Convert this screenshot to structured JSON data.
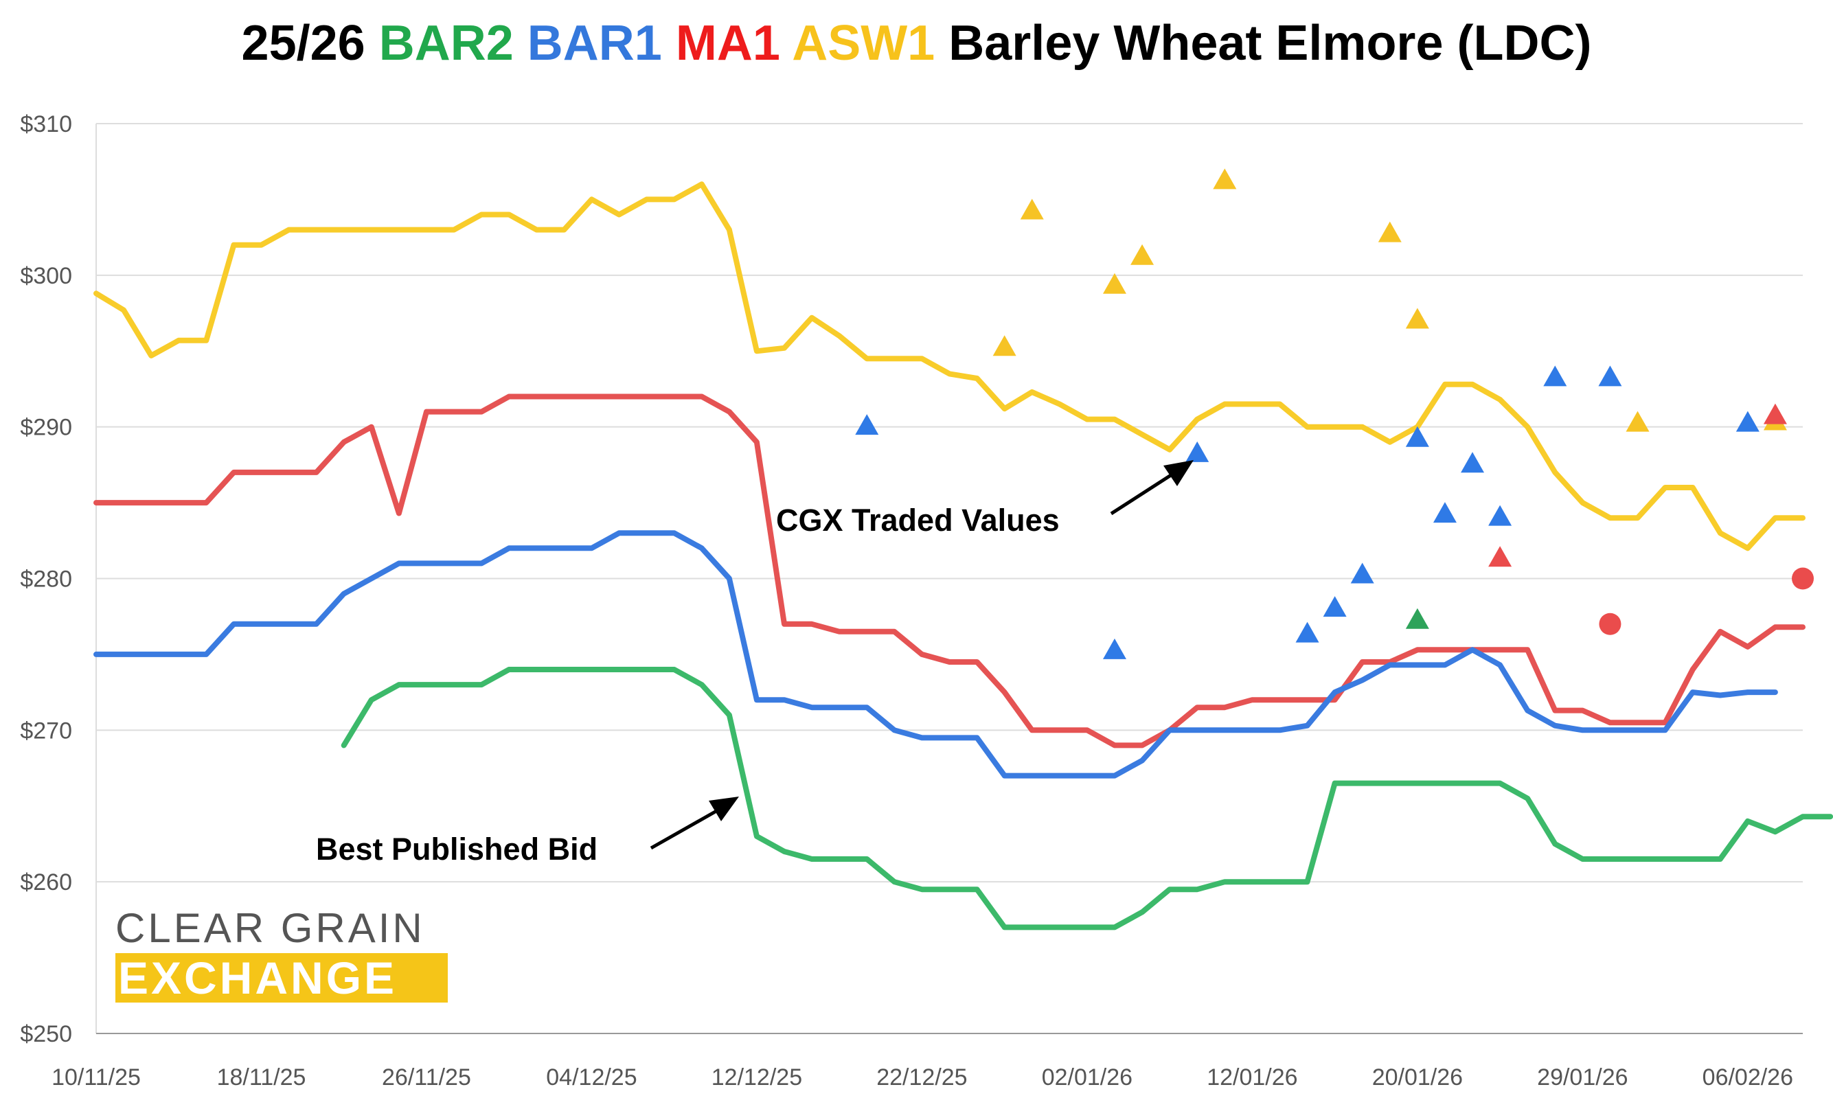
{
  "title": {
    "parts": [
      {
        "text": "25/26",
        "color": "#000000"
      },
      {
        "text": "BAR2",
        "color": "#21a84c"
      },
      {
        "text": "BAR1",
        "color": "#3478dc"
      },
      {
        "text": "MA1",
        "color": "#ee1c1c"
      },
      {
        "text": "ASW1",
        "color": "#f7c21b"
      },
      {
        "text": "Barley Wheat Elmore (LDC)",
        "color": "#000000"
      }
    ]
  },
  "logo": {
    "line1": "CLEAR GRAIN",
    "line2": "EXCHANGE"
  },
  "annotations": {
    "traded": "CGX Traded Values",
    "bid": "Best Published Bid"
  },
  "chart_data": {
    "type": "line",
    "ylim": [
      250,
      310
    ],
    "y_ticks": [
      250,
      260,
      270,
      280,
      290,
      300,
      310
    ],
    "y_tick_labels": [
      "$250",
      "$260",
      "$270",
      "$280",
      "$290",
      "$300",
      "$310"
    ],
    "x_ticks": [
      0,
      6,
      12,
      18,
      24,
      30,
      36,
      42,
      48,
      54,
      60
    ],
    "x_tick_labels": [
      "10/11/25",
      "18/11/25",
      "26/11/25",
      "04/12/25",
      "12/12/25",
      "22/12/25",
      "02/01/26",
      "12/01/26",
      "20/01/26",
      "29/01/26",
      "06/02/26"
    ],
    "grid": true,
    "colors": {
      "BAR2": "#3cb96a",
      "BAR1": "#3a7be0",
      "MA1": "#e55353",
      "ASW1": "#f8cc2a",
      "marker_BAR1": "#2f7ae6",
      "marker_MA1": "#ea4c4c",
      "marker_ASW1": "#f6c325",
      "marker_BAR2": "#2ea35a"
    },
    "series": [
      {
        "name": "ASW1",
        "values": [
          298.8,
          297.7,
          294.7,
          295.7,
          295.7,
          302,
          302,
          303,
          303,
          303,
          303,
          303,
          303,
          303,
          304,
          304,
          303,
          303,
          305,
          304,
          305,
          305,
          306,
          303,
          295,
          295.2,
          297.2,
          296,
          294.5,
          294.5,
          294.5,
          293.5,
          293.2,
          291.2,
          292.3,
          291.5,
          290.5,
          290.5,
          289.5,
          288.5,
          290.5,
          291.5,
          291.5,
          291.5,
          290,
          290,
          290,
          289,
          290,
          292.8,
          292.8,
          291.8,
          290,
          287,
          285,
          284,
          284,
          286,
          286,
          283,
          282,
          284,
          284
        ]
      },
      {
        "name": "MA1",
        "values": [
          285,
          285,
          285,
          285,
          285,
          287,
          287,
          287,
          287,
          289,
          290,
          284.3,
          291,
          291,
          291,
          292,
          292,
          292,
          292,
          292,
          292,
          292,
          292,
          291,
          289,
          277,
          277,
          276.5,
          276.5,
          276.5,
          275,
          274.5,
          274.5,
          272.5,
          270,
          270,
          270,
          269,
          269,
          270,
          271.5,
          271.5,
          272,
          272,
          272,
          272,
          274.5,
          274.5,
          275.3,
          275.3,
          275.3,
          275.3,
          275.3,
          271.3,
          271.3,
          270.5,
          270.5,
          270.5,
          274,
          276.5,
          275.5,
          276.8,
          276.8
        ]
      },
      {
        "name": "BAR1",
        "values": [
          275,
          275,
          275,
          275,
          275,
          277,
          277,
          277,
          277,
          279,
          280,
          281,
          281,
          281,
          281,
          282,
          282,
          282,
          282,
          283,
          283,
          283,
          282,
          280,
          272,
          272,
          271.5,
          271.5,
          271.5,
          270,
          269.5,
          269.5,
          269.5,
          267,
          267,
          267,
          267,
          267,
          268,
          270,
          270,
          270,
          270,
          270,
          270.3,
          272.5,
          273.3,
          274.3,
          274.3,
          274.3,
          275.3,
          274.3,
          271.3,
          270.3,
          270,
          270,
          270,
          270,
          272.5,
          272.3,
          272.5,
          272.5
        ]
      },
      {
        "name": "BAR2",
        "start_index": 9,
        "values": [
          269,
          272,
          273,
          273,
          273,
          273,
          274,
          274,
          274,
          274,
          274,
          274,
          274,
          273,
          271,
          263,
          262,
          261.5,
          261.5,
          261.5,
          260,
          259.5,
          259.5,
          259.5,
          257,
          257,
          257,
          257,
          257,
          258,
          259.5,
          259.5,
          260,
          260,
          260,
          260,
          266.5,
          266.5,
          266.5,
          266.5,
          266.5,
          266.5,
          266.5,
          265.5,
          262.5,
          261.5,
          261.5,
          261.5,
          261.5,
          261.5,
          261.5,
          264,
          263.3,
          264.3,
          264.3
        ]
      }
    ],
    "traded_markers": [
      {
        "series": "ASW1",
        "shape": "triangle",
        "points": [
          [
            33,
            295.2
          ],
          [
            34,
            304.2
          ],
          [
            37,
            299.3
          ],
          [
            38,
            301.2
          ],
          [
            41,
            306.2
          ],
          [
            47,
            302.7
          ],
          [
            48,
            297
          ],
          [
            56,
            290.2
          ],
          [
            61,
            290.3
          ]
        ]
      },
      {
        "series": "BAR1",
        "shape": "triangle",
        "points": [
          [
            28,
            290
          ],
          [
            37,
            275.2
          ],
          [
            40,
            288.2
          ],
          [
            44,
            276.3
          ],
          [
            45,
            278
          ],
          [
            46,
            280.2
          ],
          [
            48,
            289.2
          ],
          [
            49,
            284.2
          ],
          [
            50,
            287.5
          ],
          [
            51,
            284
          ],
          [
            53,
            293.2
          ],
          [
            55,
            293.2
          ],
          [
            60,
            290.2
          ]
        ]
      },
      {
        "series": "MA1",
        "shape": "triangle",
        "points": [
          [
            51,
            281.3
          ],
          [
            61,
            290.7
          ]
        ]
      },
      {
        "series": "MA1",
        "shape": "circle",
        "points": [
          [
            55,
            277
          ],
          [
            62,
            280
          ]
        ]
      },
      {
        "series": "BAR2",
        "shape": "triangle",
        "points": [
          [
            48,
            277.2
          ]
        ]
      }
    ]
  }
}
